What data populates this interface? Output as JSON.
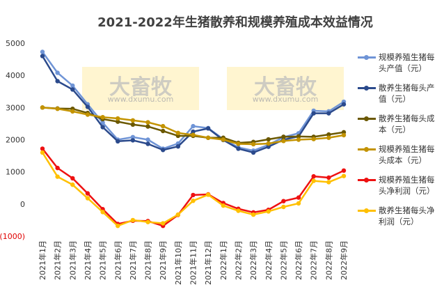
{
  "chart_data": {
    "type": "line",
    "title": "2021-2022年生猪散养和规模养殖成本效益情况",
    "watermark": "www.dxumu.com",
    "watermark_brand": "大畜牧",
    "categories": [
      "2021年1月",
      "2021年2月",
      "2021年3月",
      "2021年4月",
      "2021年5月",
      "2021年6月",
      "2021年7月",
      "2021年8月",
      "2021年9月",
      "2021年10月",
      "2021年11月",
      "2021年12月",
      "2022年1月",
      "2022年2月",
      "2022年3月",
      "2022年4月",
      "2022年5月",
      "2022年6月",
      "2022年7月",
      "2022年8月",
      "2022年9月"
    ],
    "series": [
      {
        "name": "规模养殖生猪每头产值（元）",
        "color": "#6f94d6",
        "values": [
          4730,
          4080,
          3680,
          3100,
          2530,
          2000,
          2080,
          2000,
          1720,
          1880,
          2420,
          2360,
          2020,
          1760,
          1660,
          1840,
          2080,
          2200,
          2900,
          2880,
          3180
        ]
      },
      {
        "name": "散养生猪每头产值（元）",
        "color": "#2b4a8c",
        "values": [
          4600,
          3820,
          3560,
          3020,
          2390,
          1950,
          1980,
          1870,
          1680,
          1790,
          2250,
          2350,
          1990,
          1720,
          1600,
          1780,
          2000,
          2100,
          2820,
          2820,
          3100
        ]
      },
      {
        "name": "散养生猪每头成本（元）",
        "color": "#6b5800",
        "values": [
          3000,
          2970,
          2960,
          2830,
          2640,
          2560,
          2470,
          2410,
          2270,
          2120,
          2120,
          2060,
          2060,
          1900,
          1930,
          2010,
          2090,
          2100,
          2090,
          2160,
          2230
        ]
      },
      {
        "name": "规模养殖生猪每头成本（元）",
        "color": "#c39300",
        "values": [
          3000,
          2960,
          2880,
          2780,
          2700,
          2660,
          2600,
          2540,
          2420,
          2210,
          2150,
          2060,
          2000,
          1870,
          1860,
          1880,
          1960,
          2000,
          2020,
          2060,
          2140
        ]
      },
      {
        "name": "规模养殖生猪每头净利润（元）",
        "color": "#ee1111",
        "values": [
          1720,
          1120,
          800,
          330,
          -160,
          -620,
          -520,
          -530,
          -680,
          -340,
          280,
          300,
          30,
          -150,
          -260,
          -180,
          90,
          200,
          860,
          820,
          1040
        ]
      },
      {
        "name": "散养生猪每头净利润（元）",
        "color": "#ffc000",
        "values": [
          1600,
          850,
          600,
          180,
          -250,
          -680,
          -500,
          -560,
          -600,
          -330,
          100,
          290,
          -50,
          -210,
          -330,
          -230,
          -90,
          20,
          720,
          680,
          870
        ]
      }
    ],
    "ylim": [
      -1000,
      5000
    ],
    "yticks": [
      {
        "value": -1000,
        "label": "(1000)"
      },
      0,
      1000,
      2000,
      3000,
      4000,
      5000
    ],
    "grid": false,
    "legend": "right"
  }
}
